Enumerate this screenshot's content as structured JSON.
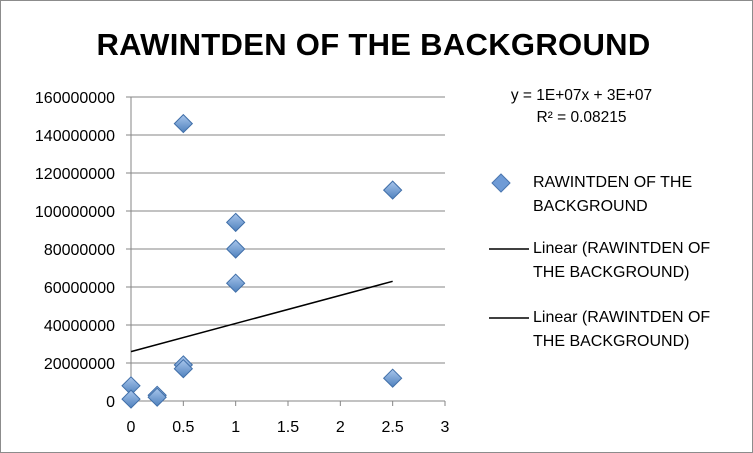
{
  "chart_data": {
    "type": "scatter",
    "title": "RAWINTDEN OF THE BACKGROUND",
    "xlabel": "",
    "ylabel": "",
    "xlim": [
      0,
      3
    ],
    "ylim": [
      0,
      160000000
    ],
    "x_ticks": [
      "0",
      "0.5",
      "1",
      "1.5",
      "2",
      "2.5",
      "3"
    ],
    "y_ticks": [
      "0",
      "20000000",
      "40000000",
      "60000000",
      "80000000",
      "100000000",
      "120000000",
      "140000000",
      "160000000"
    ],
    "grid": "horizontal",
    "legend_position": "right",
    "series": [
      {
        "name": "RAWINTDEN OF THE BACKGROUND",
        "marker": "diamond",
        "color": "#4f81bd",
        "points": [
          {
            "x": 0,
            "y": 8000000
          },
          {
            "x": 0,
            "y": 1000000
          },
          {
            "x": 0.25,
            "y": 3000000
          },
          {
            "x": 0.25,
            "y": 2000000
          },
          {
            "x": 0.5,
            "y": 146000000
          },
          {
            "x": 0.5,
            "y": 19000000
          },
          {
            "x": 0.5,
            "y": 17000000
          },
          {
            "x": 1,
            "y": 94000000
          },
          {
            "x": 1,
            "y": 80000000
          },
          {
            "x": 1,
            "y": 62000000
          },
          {
            "x": 2.5,
            "y": 111000000
          },
          {
            "x": 2.5,
            "y": 12000000
          }
        ]
      }
    ],
    "trendline": {
      "type": "linear",
      "color": "#000000",
      "x_range": [
        0,
        2.5
      ],
      "y_start": 26000000,
      "y_end": 63000000,
      "equation": "y = 1E+07x + 3E+07",
      "r_squared": "R² = 0.08215"
    },
    "legend": [
      {
        "label": "RAWINTDEN OF THE BACKGROUND",
        "kind": "diamond-marker"
      },
      {
        "label": "Linear (RAWINTDEN OF THE BACKGROUND)",
        "kind": "line"
      },
      {
        "label": "Linear (RAWINTDEN OF THE BACKGROUND)",
        "kind": "line"
      }
    ]
  }
}
